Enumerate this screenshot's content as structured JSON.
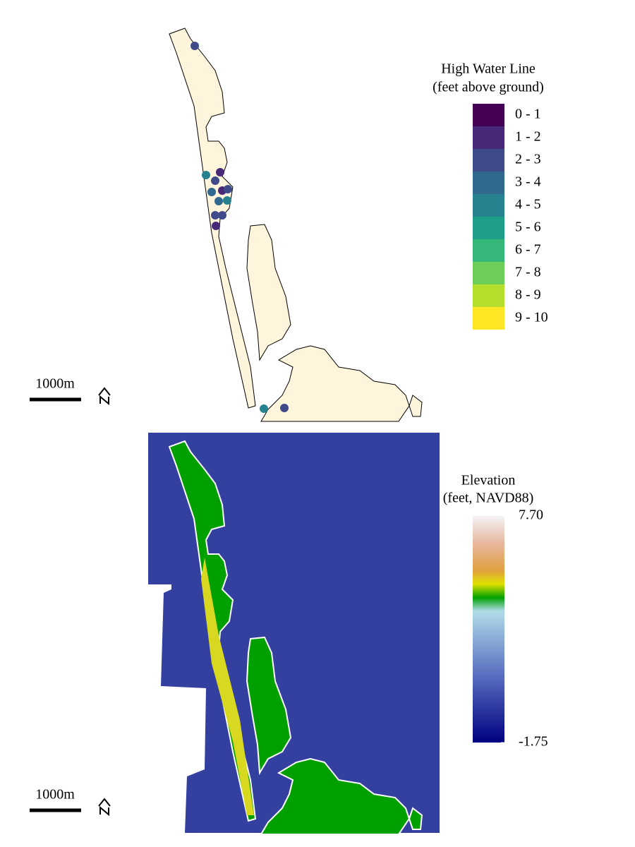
{
  "panels": [
    {
      "legend": {
        "title": [
          "High Water Line",
          "(feet above ground)"
        ],
        "items": [
          {
            "label": "0 - 1",
            "color": "#440154"
          },
          {
            "label": "1 - 2",
            "color": "#482878"
          },
          {
            "label": "2 - 3",
            "color": "#3E4A89"
          },
          {
            "label": "3 - 4",
            "color": "#31688E"
          },
          {
            "label": "4 - 5",
            "color": "#26828E"
          },
          {
            "label": "5 - 6",
            "color": "#1F9E89"
          },
          {
            "label": "6 - 7",
            "color": "#35B779"
          },
          {
            "label": "7 - 8",
            "color": "#6DCD59"
          },
          {
            "label": "8 - 9",
            "color": "#B4DE2C"
          },
          {
            "label": "9 - 10",
            "color": "#FDE725"
          }
        ]
      },
      "scale_bar": "1000m"
    },
    {
      "legend": {
        "title": [
          "Elevation",
          "(feet, NAVD88)"
        ],
        "ticks": [
          {
            "value": 7.7,
            "label": "7.70"
          },
          -1.75
        ]
      },
      "scale_bar": "1000m"
    }
  ]
}
